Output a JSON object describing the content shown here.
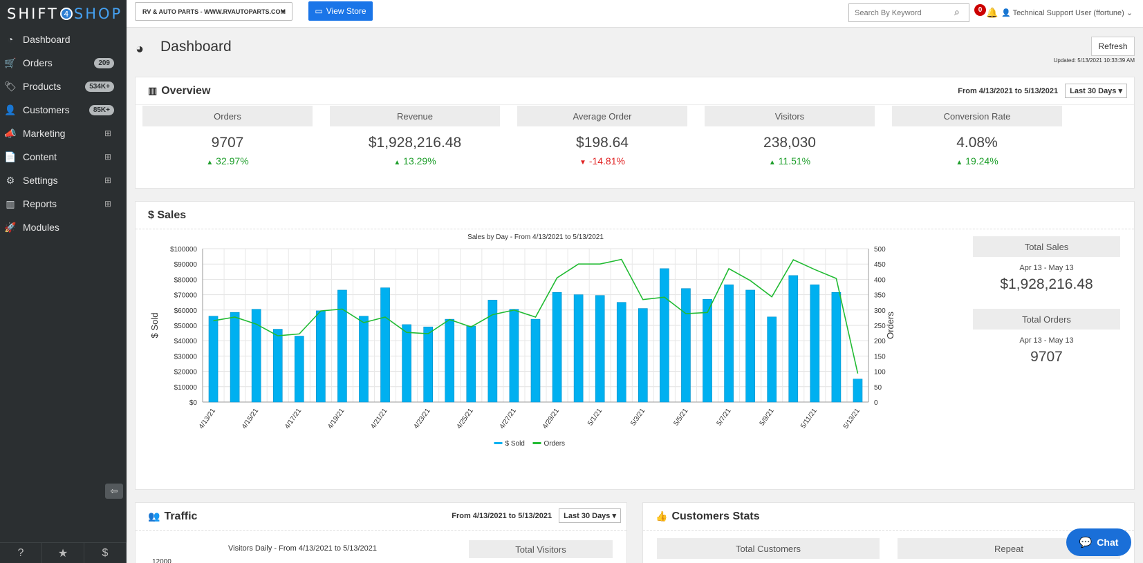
{
  "brand": {
    "shift": "SHIFT",
    "four": "4",
    "shop": "SHOP"
  },
  "sidebar": {
    "items": [
      {
        "label": "Dashboard",
        "icon": "dashboard-icon",
        "glyph": "◔",
        "badge": ""
      },
      {
        "label": "Orders",
        "icon": "cart-icon",
        "glyph": "🛒",
        "badge": "209"
      },
      {
        "label": "Products",
        "icon": "tags-icon",
        "glyph": "🏷",
        "badge": "534K+"
      },
      {
        "label": "Customers",
        "icon": "user-icon",
        "glyph": "👤",
        "badge": "85K+"
      },
      {
        "label": "Marketing",
        "icon": "megaphone-icon",
        "glyph": "📣",
        "badge": "",
        "expand": "⊞"
      },
      {
        "label": "Content",
        "icon": "file-icon",
        "glyph": "📄",
        "badge": "",
        "expand": "⊞"
      },
      {
        "label": "Settings",
        "icon": "gears-icon",
        "glyph": "⚙",
        "badge": "",
        "expand": "⊞"
      },
      {
        "label": "Reports",
        "icon": "bar-chart-icon",
        "glyph": "▥",
        "badge": "",
        "expand": "⊞"
      },
      {
        "label": "Modules",
        "icon": "rocket-icon",
        "glyph": "🚀",
        "badge": ""
      }
    ],
    "footer": {
      "help": "?",
      "favorites": "★",
      "billing": "$"
    },
    "collapse": "⇦"
  },
  "topbar": {
    "store": "RV & AUTO PARTS - WWW.RVAUTOPARTS.COM",
    "view_store": "View Store",
    "search_placeholder": "Search By Keyword",
    "notifications": "0",
    "user": "Technical Support User (ffortune)"
  },
  "page": {
    "title": "Dashboard",
    "refresh": "Refresh",
    "updated": "Updated: 5/13/2021 10:33:39 AM"
  },
  "overview": {
    "title": "Overview",
    "range": "From 4/13/2021 to 5/13/2021",
    "period": "Last 30 Days",
    "stats": [
      {
        "label": "Orders",
        "value": "9707",
        "change": "32.97%",
        "dir": "up"
      },
      {
        "label": "Revenue",
        "value": "$1,928,216.48",
        "change": "13.29%",
        "dir": "up"
      },
      {
        "label": "Average Order",
        "value": "$198.64",
        "change": "-14.81%",
        "dir": "down"
      },
      {
        "label": "Visitors",
        "value": "238,030",
        "change": "11.51%",
        "dir": "up"
      },
      {
        "label": "Conversion Rate",
        "value": "4.08%",
        "change": "19.24%",
        "dir": "up"
      }
    ]
  },
  "sales": {
    "title": "$ Sales",
    "total_sales_label": "Total Sales",
    "total_sales_range": "Apr 13 - May 13",
    "total_sales": "$1,928,216.48",
    "total_orders_label": "Total Orders",
    "total_orders_range": "Apr 13 - May 13",
    "total_orders": "9707"
  },
  "chart_data": {
    "type": "bar",
    "title": "Sales by Day - From 4/13/2021 to 5/13/2021",
    "ylabel": "$ Sold",
    "y2label": "Orders",
    "ylim": [
      0,
      100000
    ],
    "y2lim": [
      0,
      500
    ],
    "y_ticks": [
      "$0",
      "$10000",
      "$20000",
      "$30000",
      "$40000",
      "$50000",
      "$60000",
      "$70000",
      "$80000",
      "$90000",
      "$100000"
    ],
    "y2_ticks": [
      "0",
      "50",
      "100",
      "150",
      "200",
      "250",
      "300",
      "350",
      "400",
      "450",
      "500"
    ],
    "x_tick_labels": [
      "4/13/21",
      "4/15/21",
      "4/17/21",
      "4/19/21",
      "4/21/21",
      "4/23/21",
      "4/25/21",
      "4/27/21",
      "4/29/21",
      "5/1/21",
      "5/3/21",
      "5/5/21",
      "5/7/21",
      "5/9/21",
      "5/11/21",
      "5/13/21"
    ],
    "series": [
      {
        "name": "$ Sold",
        "type": "bar",
        "color": "#00b0f0",
        "values": [
          56000,
          58500,
          60500,
          47500,
          43000,
          59500,
          73000,
          56000,
          74500,
          50500,
          49000,
          54000,
          49500,
          66500,
          60500,
          54000,
          71500,
          70000,
          69500,
          65000,
          61000,
          87000,
          74000,
          67000,
          76500,
          73000,
          55500,
          82500,
          76500,
          71500,
          15000
        ]
      },
      {
        "name": "Orders",
        "type": "line",
        "color": "#22bb33",
        "values": [
          265,
          277,
          254,
          216,
          222,
          297,
          303,
          259,
          277,
          227,
          223,
          269,
          245,
          285,
          300,
          277,
          405,
          450,
          450,
          465,
          334,
          342,
          288,
          292,
          435,
          396,
          343,
          464,
          432,
          403,
          93
        ]
      }
    ],
    "legend": "bottom",
    "grid": true
  },
  "traffic": {
    "title": "Traffic",
    "range": "From 4/13/2021 to 5/13/2021",
    "period": "Last 30 Days",
    "chart_title": "Visitors Daily - From 4/13/2021 to 5/13/2021",
    "y_top_tick": "12000",
    "total_visitors_label": "Total Visitors"
  },
  "customers_stats": {
    "title": "Customers Stats",
    "total_label": "Total Customers",
    "repeat_label": "Repeat"
  },
  "chat": {
    "label": "Chat"
  }
}
